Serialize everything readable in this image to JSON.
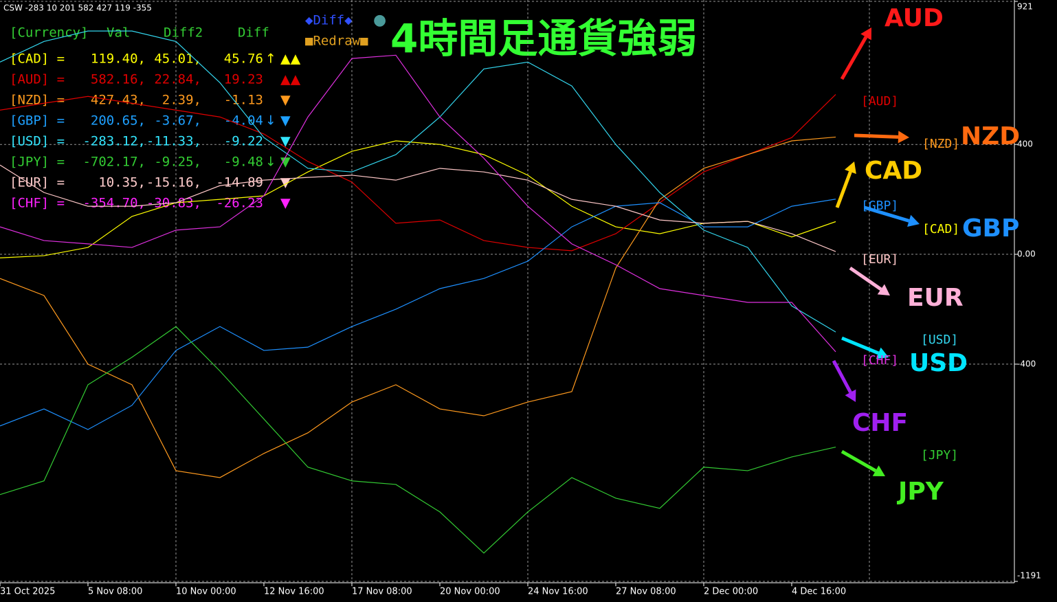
{
  "chart_data": {
    "type": "line",
    "title": "4時間足通貨強弱",
    "header_text": "CSW -283 10 201 582 427 119 -355",
    "buttons": [
      "◆Diff◆",
      "●",
      "■Redraw■"
    ],
    "categories": [
      "31 Oct 2025",
      null,
      "5 Nov 08:00",
      null,
      "10 Nov 00:00",
      null,
      "12 Nov 16:00",
      null,
      "17 Nov 08:00",
      null,
      "20 Nov 00:00",
      null,
      "24 Nov 16:00",
      null,
      "27 Nov 08:00",
      null,
      "2 Dec 00:00",
      null,
      "4 Dec 16:00",
      null
    ],
    "ylim": [
      -1191,
      921
    ],
    "yticks": [
      921,
      400,
      {
        "value": 0,
        "label": "0.00"
      },
      -400,
      -1191
    ],
    "grid": true,
    "series": [
      {
        "name": "CAD",
        "tag": "[CAD]",
        "color": "#ffff00",
        "label_color": "#ffcc00",
        "values": [
          -13,
          -5,
          25,
          138,
          188,
          200,
          213,
          300,
          375,
          413,
          400,
          363,
          288,
          175,
          100,
          75,
          113,
          120,
          63,
          119
        ]
      },
      {
        "name": "AUD",
        "tag": "[AUD]",
        "color": "#e00000",
        "label_color": "#ff1a1a",
        "values": [
          525,
          550,
          575,
          550,
          525,
          500,
          438,
          338,
          263,
          113,
          125,
          50,
          25,
          13,
          75,
          188,
          300,
          363,
          425,
          582
        ]
      },
      {
        "name": "NZD",
        "tag": "[NZD]",
        "color": "#ff9a1e",
        "label_color": "#ff6a10",
        "values": [
          -88,
          -150,
          -400,
          -475,
          -788,
          -813,
          -725,
          -650,
          -538,
          -475,
          -563,
          -588,
          -538,
          -500,
          -50,
          200,
          313,
          363,
          413,
          427
        ]
      },
      {
        "name": "GBP",
        "tag": "[GBP]",
        "color": "#1e90ff",
        "label_color": "#1e90ff",
        "values": [
          -625,
          -563,
          -638,
          -550,
          -350,
          -263,
          -350,
          -338,
          -263,
          -200,
          -125,
          -88,
          -25,
          100,
          175,
          188,
          100,
          100,
          175,
          201
        ]
      },
      {
        "name": "USD",
        "tag": "[USD]",
        "color": "#33d6ee",
        "label_color": "#00e5ff",
        "values": [
          700,
          775,
          813,
          813,
          775,
          625,
          425,
          313,
          300,
          363,
          500,
          675,
          700,
          613,
          400,
          225,
          88,
          25,
          -188,
          -283
        ]
      },
      {
        "name": "JPY",
        "tag": "[JPY]",
        "color": "#33cc33",
        "label_color": "#44ee22",
        "values": [
          -875,
          -825,
          -475,
          -375,
          -263,
          -425,
          -600,
          -775,
          -825,
          -838,
          -938,
          -1088,
          -938,
          -813,
          -888,
          -925,
          -775,
          -788,
          -738,
          -702
        ]
      },
      {
        "name": "EUR",
        "tag": "[EUR]",
        "color": "#ffc8c8",
        "label_color": "#ffb0d8",
        "values": [
          325,
          225,
          175,
          175,
          188,
          250,
          270,
          280,
          288,
          270,
          313,
          300,
          270,
          200,
          175,
          125,
          113,
          120,
          75,
          10
        ]
      },
      {
        "name": "CHF",
        "tag": "[CHF]",
        "color": "#e030e0",
        "label_color": "#a020f0",
        "values": [
          100,
          50,
          38,
          25,
          88,
          100,
          213,
          500,
          713,
          725,
          500,
          350,
          175,
          38,
          -38,
          -125,
          -150,
          -175,
          -175,
          -355
        ]
      }
    ],
    "table": {
      "color": "#33cc33",
      "header": [
        "[Currency]",
        "Val",
        "Diff2",
        "Diff"
      ],
      "rows": [
        {
          "code": "[CAD] =",
          "val": "119.40,",
          "diff2": "45.01,",
          "diff": "45.76",
          "arrow": "↑",
          "marks": "▲▲",
          "color": "#ffff00"
        },
        {
          "code": "[AUD] =",
          "val": "582.16,",
          "diff2": "22.84,",
          "diff": "19.23",
          "marks": "▲▲",
          "color": "#e00000"
        },
        {
          "code": "[NZD] =",
          "val": "427.43,",
          "diff2": "2.39,",
          "diff": "-1.13",
          "marks": "▼",
          "color": "#ff9a1e"
        },
        {
          "code": "[GBP] =",
          "val": "200.65,",
          "diff2": "-3.67,",
          "diff": "-4.04",
          "arrow": "↓",
          "marks": "▼",
          "color": "#1ea0ff"
        },
        {
          "code": "[USD] =",
          "val": "-283.12,",
          "diff2": "-11.33,",
          "diff": "-9.22",
          "marks": "▼",
          "color": "#33e6ff"
        },
        {
          "code": "[JPY] =",
          "val": "-702.17,",
          "diff2": "-9.25,",
          "diff": "-9.48",
          "arrow": "↓",
          "marks": "▼",
          "color": "#33cc33"
        },
        {
          "code": "[EUR] =",
          "val": "10.35,",
          "diff2": "-15.16,",
          "diff": "-14.89",
          "marks": "▼",
          "color": "#ffcccc"
        },
        {
          "code": "[CHF] =",
          "val": "-354.70,",
          "diff2": "-30.83,",
          "diff": "-26.23",
          "marks": "▼",
          "color": "#ff22ff"
        }
      ]
    }
  }
}
